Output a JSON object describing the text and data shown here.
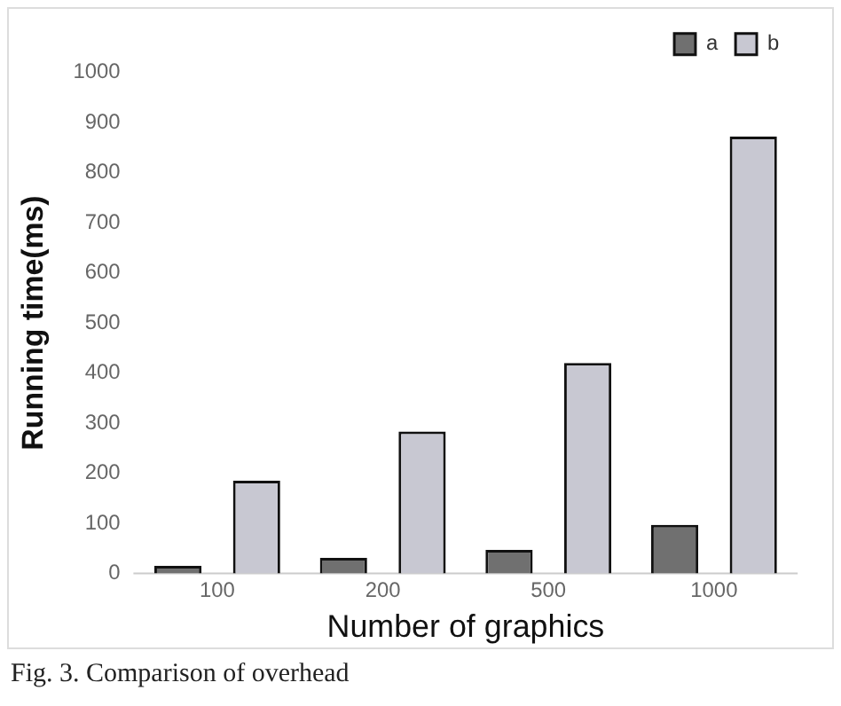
{
  "chart_data": {
    "type": "bar",
    "xlabel": "Number of graphics",
    "ylabel": "Running time(ms)",
    "categories": [
      "100",
      "200",
      "500",
      "1000"
    ],
    "series": [
      {
        "name": "a",
        "color": "#707070",
        "values": [
          15,
          31,
          47,
          97
        ]
      },
      {
        "name": "b",
        "color": "#c8c8d2",
        "values": [
          185,
          283,
          420,
          872
        ]
      }
    ],
    "ylim": [
      0,
      1000
    ],
    "yticks": [
      0,
      100,
      200,
      300,
      400,
      500,
      600,
      700,
      800,
      900,
      1000
    ],
    "grid": false,
    "legend": "top right",
    "annotations": [
      "Fig. 3. Comparison of overhead"
    ]
  }
}
